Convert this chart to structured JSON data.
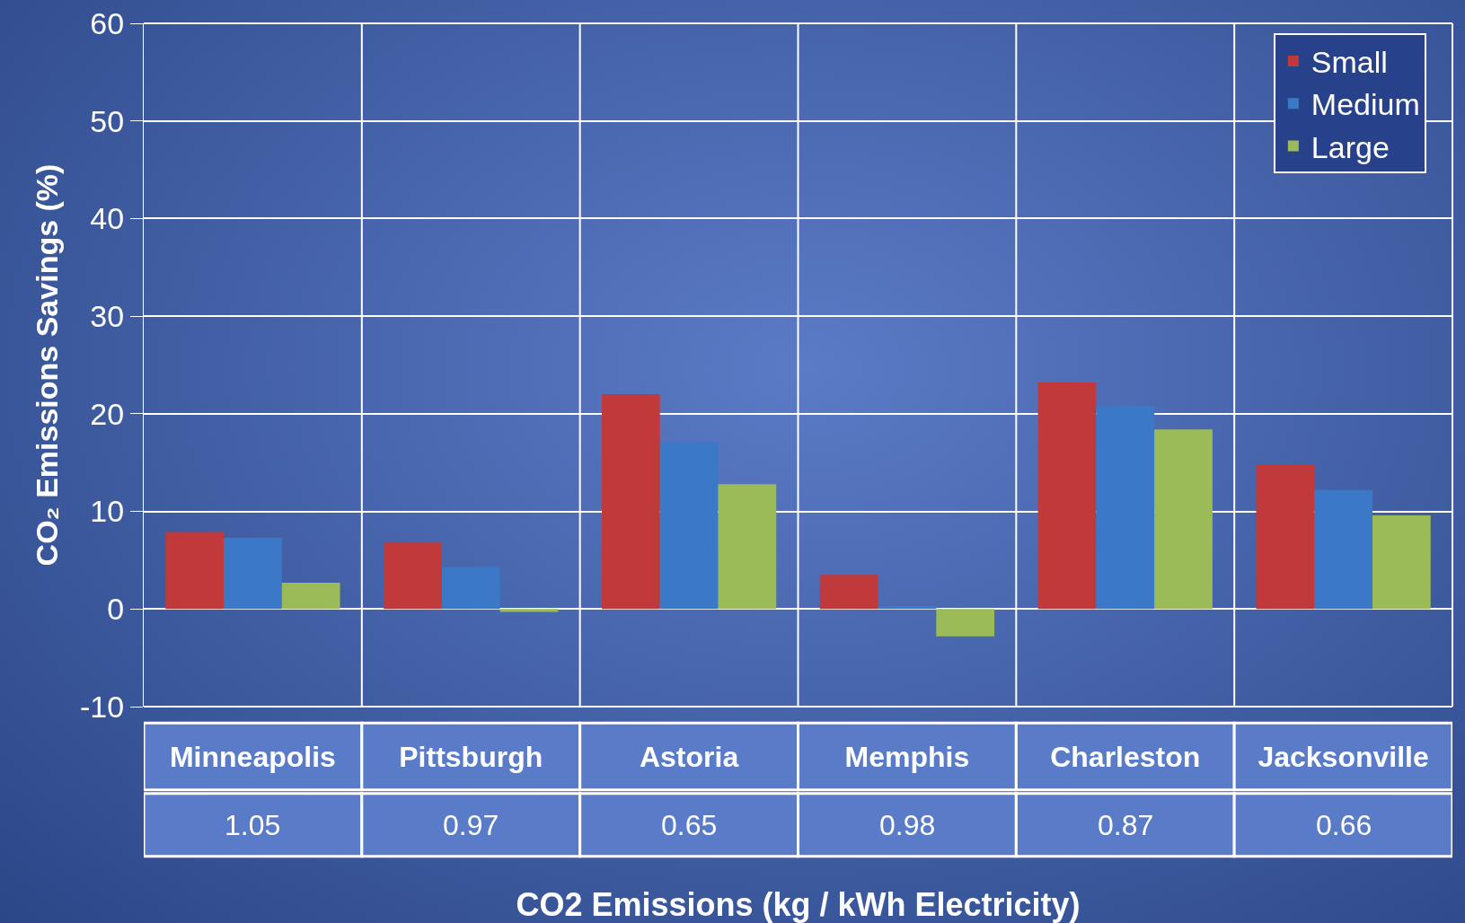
{
  "chart_data": {
    "type": "bar",
    "xlabel": "CO2 Emissions (kg / kWh Electricity)",
    "ylabel": "CO₂ Emissions Savings (%)",
    "categories": [
      "Minneapolis",
      "Pittsburgh",
      "Astoria",
      "Memphis",
      "Charleston",
      "Jacksonville"
    ],
    "series": [
      {
        "name": "Small",
        "color": "#c0393b",
        "values": [
          7.9,
          6.8,
          22.0,
          3.5,
          23.2,
          14.8
        ]
      },
      {
        "name": "Medium",
        "color": "#3b78c8",
        "values": [
          7.3,
          4.3,
          17.1,
          0.3,
          20.8,
          12.2
        ]
      },
      {
        "name": "Large",
        "color": "#9bbb59",
        "values": [
          2.7,
          -0.3,
          12.8,
          -2.8,
          18.4,
          9.6
        ]
      }
    ],
    "annotations": [
      "1.05",
      "0.97",
      "0.65",
      "0.98",
      "0.87",
      "0.66"
    ],
    "ylim": [
      -10,
      60
    ],
    "yticks": [
      -10,
      0,
      10,
      20,
      30,
      40,
      50,
      60
    ],
    "grid": true,
    "legend": "top right"
  }
}
